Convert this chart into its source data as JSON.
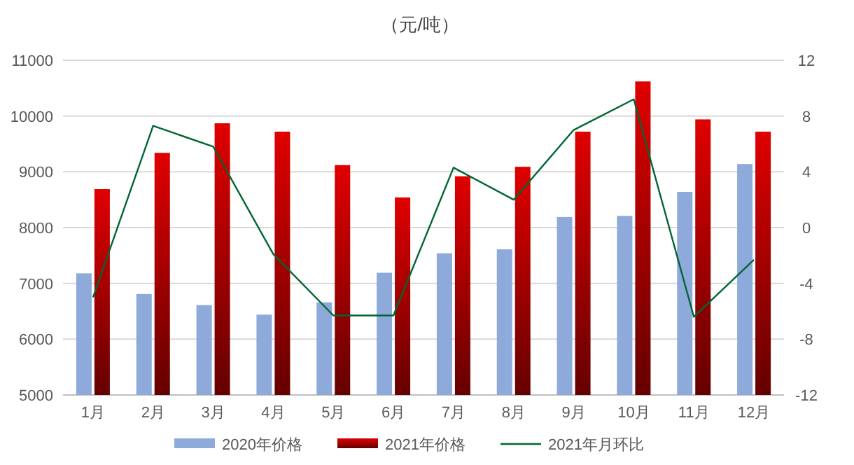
{
  "chart_data": {
    "type": "bar",
    "title": "（元/吨）",
    "categories": [
      "1月",
      "2月",
      "3月",
      "4月",
      "5月",
      "6月",
      "7月",
      "8月",
      "9月",
      "10月",
      "11月",
      "12月"
    ],
    "series": [
      {
        "name": "2020年价格",
        "color": "#8eaadb",
        "values": [
          7180,
          6810,
          6610,
          6440,
          6660,
          7190,
          7540,
          7610,
          8190,
          8210,
          8640,
          9140
        ]
      },
      {
        "name": "2021年价格",
        "color": "#e00000",
        "values": [
          8690,
          9340,
          9870,
          9720,
          9120,
          8540,
          8920,
          9090,
          9720,
          10620,
          9940,
          9720
        ]
      },
      {
        "name": "2021年月环比",
        "type": "line",
        "axis": "y2",
        "color": "#006633",
        "values": [
          -5.0,
          7.3,
          5.8,
          -1.9,
          -6.3,
          -6.3,
          4.3,
          2.0,
          7.0,
          9.2,
          -6.4,
          -2.3
        ]
      }
    ],
    "ylim": [
      5000,
      11000
    ],
    "yticks": [
      5000,
      6000,
      7000,
      8000,
      9000,
      10000,
      11000
    ],
    "y2lim": [
      -12,
      12
    ],
    "y2ticks": [
      -12,
      -8,
      -4,
      0,
      4,
      8,
      12
    ],
    "grid": "y",
    "legend": "bottom"
  }
}
